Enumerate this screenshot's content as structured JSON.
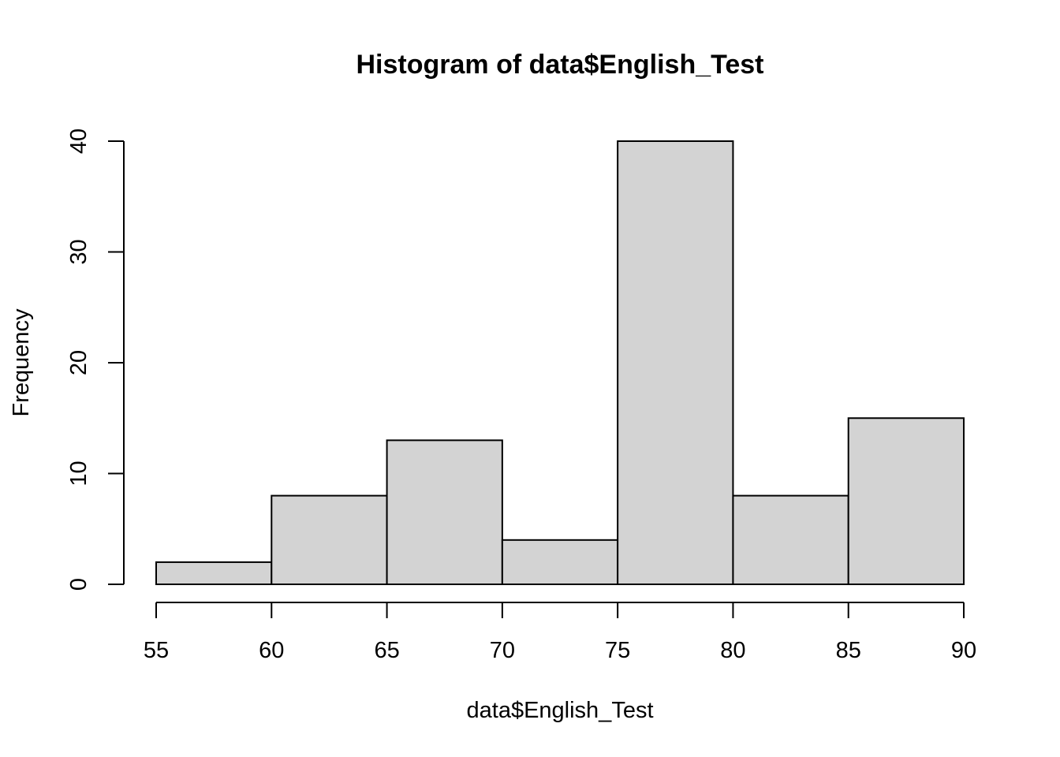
{
  "chart_data": {
    "type": "bar",
    "title": "Histogram of data$English_Test",
    "xlabel": "data$English_Test",
    "ylabel": "Frequency",
    "bins": [
      [
        55,
        60
      ],
      [
        60,
        65
      ],
      [
        65,
        70
      ],
      [
        70,
        75
      ],
      [
        75,
        80
      ],
      [
        80,
        85
      ],
      [
        85,
        90
      ]
    ],
    "values": [
      2,
      8,
      13,
      4,
      40,
      8,
      15
    ],
    "xlim": [
      55,
      90
    ],
    "ylim": [
      0,
      40
    ],
    "xticks": [
      "55",
      "60",
      "65",
      "70",
      "75",
      "80",
      "85",
      "90"
    ],
    "yticks": [
      "0",
      "10",
      "20",
      "30",
      "40"
    ],
    "bar_color": "#d3d3d3",
    "grid": false,
    "legend": "none"
  }
}
